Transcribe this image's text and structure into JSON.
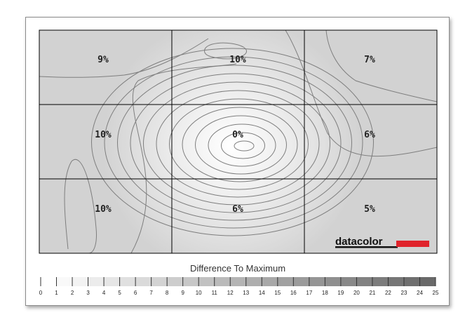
{
  "chart_data": {
    "type": "heatmap",
    "title": "",
    "rows": 3,
    "cols": 3,
    "cells": [
      [
        "9%",
        "10%",
        "7%"
      ],
      [
        "10%",
        "0%",
        "6%"
      ],
      [
        "10%",
        "6%",
        "5%"
      ]
    ],
    "values": [
      [
        9,
        10,
        7
      ],
      [
        10,
        0,
        6
      ],
      [
        10,
        6,
        5
      ]
    ],
    "unit": "%",
    "legend": {
      "title": "Difference To Maximum",
      "ticks": [
        "0",
        "1",
        "2",
        "3",
        "4",
        "5",
        "6",
        "7",
        "8",
        "9",
        "10",
        "11",
        "12",
        "13",
        "14",
        "15",
        "16",
        "17",
        "18",
        "19",
        "20",
        "21",
        "22",
        "23",
        "24",
        "25"
      ]
    },
    "brand": "datacolor",
    "colors": {
      "brand_bar": "#e0232b",
      "grid": "#000000",
      "contour": "#7a7a7a"
    }
  }
}
